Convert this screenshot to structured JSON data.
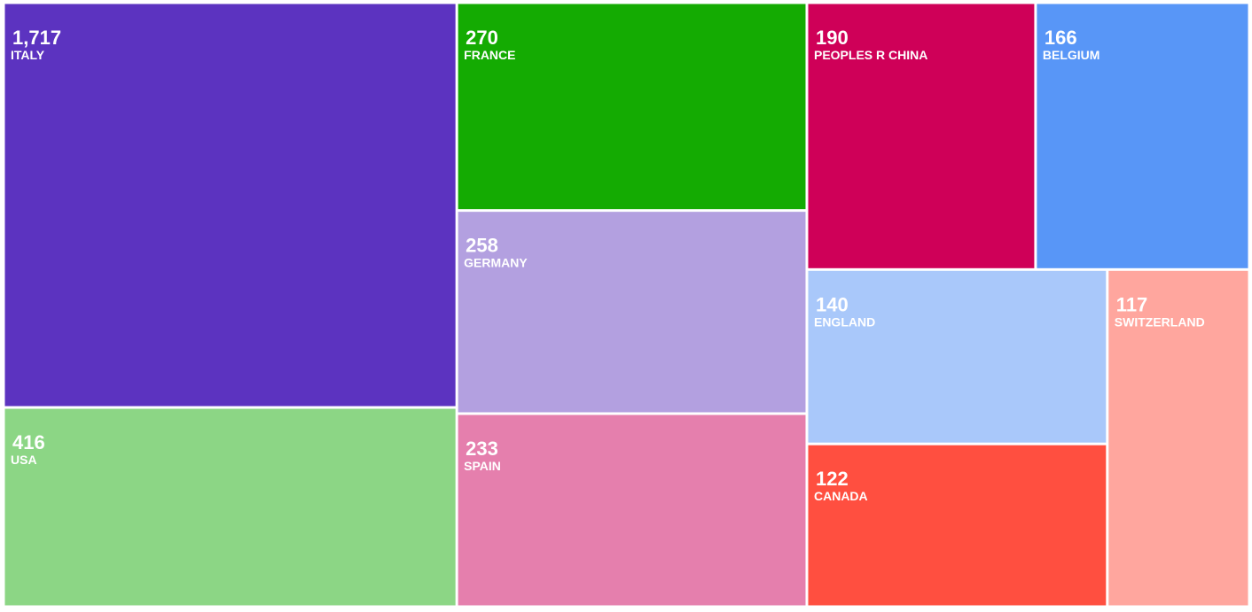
{
  "chart_data": {
    "type": "treemap",
    "categories": [
      "ITALY",
      "USA",
      "FRANCE",
      "GERMANY",
      "SPAIN",
      "PEOPLES R CHINA",
      "BELGIUM",
      "ENGLAND",
      "CANADA",
      "SWITZERLAND"
    ],
    "values": [
      1717,
      416,
      270,
      258,
      233,
      190,
      166,
      140,
      122,
      117
    ],
    "value_labels": [
      "1,717",
      "416",
      "270",
      "258",
      "233",
      "190",
      "166",
      "140",
      "122",
      "117"
    ],
    "colors": [
      "#5c33c0",
      "#8cd685",
      "#14ab02",
      "#b3a0e0",
      "#e57fad",
      "#cf0058",
      "#5896f7",
      "#a9c8fa",
      "#ff4f40",
      "#ffa69e"
    ]
  }
}
